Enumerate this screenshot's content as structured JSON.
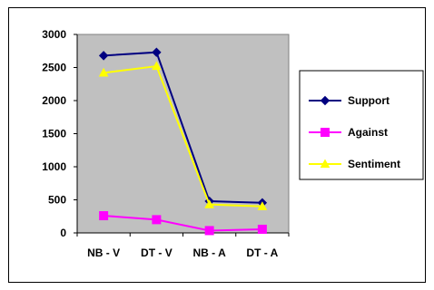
{
  "chart_data": {
    "type": "line",
    "title": "",
    "xlabel": "",
    "ylabel": "",
    "categories": [
      "NB - V",
      "DT - V",
      "NB - A",
      "DT - A"
    ],
    "ylim": [
      0,
      3000
    ],
    "yticks": [
      "0",
      "500",
      "1000",
      "1500",
      "2000",
      "2500",
      "3000"
    ],
    "grid": false,
    "plot_area_color": "#c0c0c0",
    "legend_placement": "right",
    "series": [
      {
        "name": "Support",
        "values": [
          2680,
          2730,
          480,
          455
        ],
        "color": "#000080",
        "marker": "diamond"
      },
      {
        "name": "Against",
        "values": [
          260,
          200,
          35,
          55
        ],
        "color": "#ff00ff",
        "marker": "square"
      },
      {
        "name": "Sentiment",
        "values": [
          2420,
          2520,
          430,
          400
        ],
        "color": "#ffff00",
        "marker": "triangle"
      }
    ]
  }
}
